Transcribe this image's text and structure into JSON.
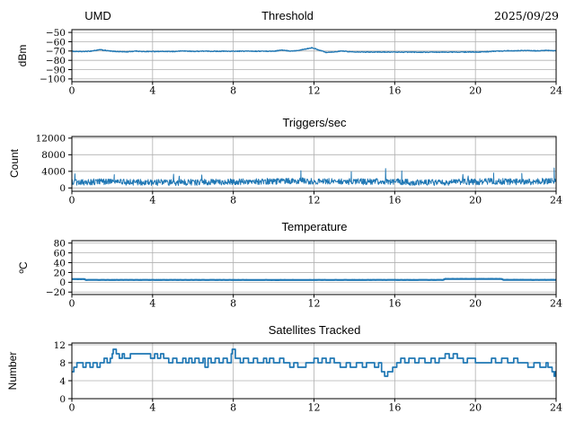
{
  "header": {
    "left_label": "UMD",
    "date": "2025/09/29"
  },
  "chart_data": [
    {
      "type": "line",
      "title": "Threshold",
      "ylabel": "dBm",
      "xlabel": "",
      "xlim": [
        0,
        24
      ],
      "ylim": [
        -103,
        -47
      ],
      "grid": true,
      "legend": "none",
      "color": "#1f77b4",
      "xticks": {
        "values": [
          0,
          4,
          8,
          12,
          16,
          20,
          24
        ],
        "labels": [
          "0",
          "4",
          "8",
          "12",
          "16",
          "20",
          "24"
        ]
      },
      "yticks": {
        "values": [
          -50,
          -60,
          -70,
          -80,
          -90,
          -100
        ],
        "labels": [
          "−50",
          "−60",
          "−70",
          "−80",
          "−90",
          "−100"
        ]
      },
      "series": [
        {
          "name": "threshold_dbm",
          "interpolation": "linear",
          "sample_step": 0.02,
          "noise": 0.4,
          "keypoints": [
            [
              0,
              -70.3
            ],
            [
              0.5,
              -70.6
            ],
            [
              0.9,
              -70.2
            ],
            [
              1.4,
              -68.6
            ],
            [
              2.0,
              -70.3
            ],
            [
              2.7,
              -70.9
            ],
            [
              3.2,
              -70.0
            ],
            [
              3.5,
              -70.6
            ],
            [
              4.2,
              -70.4
            ],
            [
              5.0,
              -70.6
            ],
            [
              5.5,
              -69.9
            ],
            [
              6.0,
              -70.4
            ],
            [
              6.5,
              -70.1
            ],
            [
              7.0,
              -70.3
            ],
            [
              7.5,
              -70.2
            ],
            [
              8.0,
              -70.3
            ],
            [
              8.7,
              -70.1
            ],
            [
              9.3,
              -70.2
            ],
            [
              10.0,
              -70.2
            ],
            [
              10.4,
              -69.0
            ],
            [
              10.8,
              -70.1
            ],
            [
              11.1,
              -69.6
            ],
            [
              11.4,
              -68.5
            ],
            [
              11.9,
              -66.5
            ],
            [
              12.1,
              -67.8
            ],
            [
              12.6,
              -71.4
            ],
            [
              13.0,
              -70.9
            ],
            [
              13.4,
              -70.0
            ],
            [
              13.8,
              -70.8
            ],
            [
              14.5,
              -71.0
            ],
            [
              15.5,
              -71.1
            ],
            [
              16.5,
              -71.2
            ],
            [
              17.5,
              -71.3
            ],
            [
              18.5,
              -71.2
            ],
            [
              19.5,
              -71.1
            ],
            [
              20.3,
              -71.0
            ],
            [
              21.0,
              -70.2
            ],
            [
              21.5,
              -69.8
            ],
            [
              22.0,
              -69.6
            ],
            [
              22.5,
              -69.5
            ],
            [
              23.0,
              -69.8
            ],
            [
              23.5,
              -69.4
            ],
            [
              24,
              -69.8
            ]
          ]
        }
      ]
    },
    {
      "type": "line",
      "title": "Triggers/sec",
      "ylabel": "Count",
      "xlabel": "",
      "xlim": [
        0,
        24
      ],
      "ylim": [
        -800,
        12400
      ],
      "grid": true,
      "legend": "none",
      "color": "#1f77b4",
      "xticks": {
        "values": [
          0,
          4,
          8,
          12,
          16,
          20,
          24
        ],
        "labels": [
          "0",
          "4",
          "8",
          "12",
          "16",
          "20",
          "24"
        ]
      },
      "yticks": {
        "values": [
          0,
          4000,
          8000,
          12000
        ],
        "labels": [
          "0",
          "4000",
          "8000",
          "12000"
        ]
      },
      "series": [
        {
          "name": "triggers_per_sec",
          "interpolation": "linear",
          "sample_step": 0.02,
          "noise": 750,
          "clamp_min": 300,
          "burst_chance": 0.013,
          "burst_max": 1500,
          "spikes": [
            [
              0.15,
              3400
            ],
            [
              2.1,
              3200
            ],
            [
              11.35,
              4150
            ],
            [
              13.85,
              3900
            ],
            [
              15.55,
              4650
            ],
            [
              16.35,
              4100
            ],
            [
              20.9,
              3600
            ],
            [
              22.3,
              3500
            ],
            [
              23.9,
              4800
            ]
          ],
          "keypoints": [
            [
              0,
              1400
            ],
            [
              2,
              1500
            ],
            [
              4,
              1300
            ],
            [
              6,
              1350
            ],
            [
              8,
              1500
            ],
            [
              10,
              1600
            ],
            [
              11.5,
              1750
            ],
            [
              12,
              1500
            ],
            [
              13,
              1600
            ],
            [
              14,
              1500
            ],
            [
              15,
              1550
            ],
            [
              16,
              1500
            ],
            [
              17,
              1300
            ],
            [
              18,
              1300
            ],
            [
              19,
              1400
            ],
            [
              20,
              1500
            ],
            [
              21,
              1600
            ],
            [
              22,
              1500
            ],
            [
              23,
              1500
            ],
            [
              24,
              1800
            ]
          ]
        }
      ]
    },
    {
      "type": "line",
      "title": "Temperature",
      "ylabel": "ºC",
      "xlabel": "",
      "xlim": [
        0,
        24
      ],
      "ylim": [
        -25,
        85
      ],
      "grid": true,
      "legend": "none",
      "color": "#1f77b4",
      "xticks": {
        "values": [
          0,
          4,
          8,
          12,
          16,
          20,
          24
        ],
        "labels": [
          "0",
          "4",
          "8",
          "12",
          "16",
          "20",
          "24"
        ]
      },
      "yticks": {
        "values": [
          80,
          60,
          40,
          20,
          0,
          -20
        ],
        "labels": [
          "80",
          "60",
          "40",
          "20",
          "0",
          "−20"
        ]
      },
      "series": [
        {
          "name": "temperature_c",
          "interpolation": "linear",
          "sample_step": 0.05,
          "noise": 0.12,
          "keypoints": [
            [
              0,
              6.5
            ],
            [
              0.6,
              6.5
            ],
            [
              0.7,
              4.8
            ],
            [
              5,
              4.8
            ],
            [
              10,
              4.7
            ],
            [
              15,
              4.8
            ],
            [
              18.4,
              4.8
            ],
            [
              18.5,
              6.8
            ],
            [
              21.3,
              6.8
            ],
            [
              21.4,
              4.9
            ],
            [
              24,
              4.9
            ]
          ]
        }
      ]
    },
    {
      "type": "line",
      "title": "Satellites Tracked",
      "ylabel": "Number",
      "xlabel": "",
      "xlim": [
        0,
        24
      ],
      "ylim": [
        0,
        12.4
      ],
      "grid": true,
      "legend": "none",
      "color": "#1f77b4",
      "xticks": {
        "values": [
          0,
          4,
          8,
          12,
          16,
          20,
          24
        ],
        "labels": [
          "0",
          "4",
          "8",
          "12",
          "16",
          "20",
          "24"
        ]
      },
      "yticks": {
        "values": [
          12,
          8,
          4,
          0
        ],
        "labels": [
          "12",
          "8",
          "4",
          "0"
        ]
      },
      "series": [
        {
          "name": "satellites_tracked",
          "interpolation": "step",
          "keypoints": [
            [
              0,
              6
            ],
            [
              0.1,
              7
            ],
            [
              0.25,
              8
            ],
            [
              0.55,
              7
            ],
            [
              0.7,
              8
            ],
            [
              0.9,
              7
            ],
            [
              1.05,
              8
            ],
            [
              1.25,
              7
            ],
            [
              1.4,
              8
            ],
            [
              1.6,
              9
            ],
            [
              1.75,
              8
            ],
            [
              1.9,
              9
            ],
            [
              2.0,
              10
            ],
            [
              2.05,
              11
            ],
            [
              2.2,
              10
            ],
            [
              2.35,
              9
            ],
            [
              2.5,
              10
            ],
            [
              2.6,
              9
            ],
            [
              2.9,
              10
            ],
            [
              3.9,
              9
            ],
            [
              4.1,
              10
            ],
            [
              4.25,
              9
            ],
            [
              4.4,
              10
            ],
            [
              4.55,
              9
            ],
            [
              4.8,
              8
            ],
            [
              5.0,
              9
            ],
            [
              5.2,
              8
            ],
            [
              5.5,
              9
            ],
            [
              5.65,
              8
            ],
            [
              5.8,
              9
            ],
            [
              5.95,
              8
            ],
            [
              6.1,
              9
            ],
            [
              6.3,
              8
            ],
            [
              6.5,
              9
            ],
            [
              6.6,
              7
            ],
            [
              6.75,
              9
            ],
            [
              6.9,
              8
            ],
            [
              7.1,
              9
            ],
            [
              7.3,
              8
            ],
            [
              7.5,
              9
            ],
            [
              7.7,
              8
            ],
            [
              7.9,
              10
            ],
            [
              7.95,
              11
            ],
            [
              8.1,
              9
            ],
            [
              8.35,
              8
            ],
            [
              8.5,
              9
            ],
            [
              8.75,
              8
            ],
            [
              9.0,
              9
            ],
            [
              9.2,
              8
            ],
            [
              9.5,
              9
            ],
            [
              9.65,
              8
            ],
            [
              9.8,
              9
            ],
            [
              10.0,
              8
            ],
            [
              10.3,
              9
            ],
            [
              10.5,
              8
            ],
            [
              10.8,
              7
            ],
            [
              11.0,
              8
            ],
            [
              11.2,
              7
            ],
            [
              11.6,
              8
            ],
            [
              12.0,
              9
            ],
            [
              12.2,
              8
            ],
            [
              12.4,
              9
            ],
            [
              12.6,
              8
            ],
            [
              12.8,
              9
            ],
            [
              13.0,
              8
            ],
            [
              13.3,
              7
            ],
            [
              13.6,
              8
            ],
            [
              13.8,
              7
            ],
            [
              14.1,
              8
            ],
            [
              14.4,
              7
            ],
            [
              14.6,
              8
            ],
            [
              15.0,
              7
            ],
            [
              15.2,
              8
            ],
            [
              15.35,
              6
            ],
            [
              15.5,
              5
            ],
            [
              15.65,
              6
            ],
            [
              15.9,
              7
            ],
            [
              16.1,
              8
            ],
            [
              16.3,
              9
            ],
            [
              16.5,
              8
            ],
            [
              16.7,
              9
            ],
            [
              17.0,
              8
            ],
            [
              17.2,
              9
            ],
            [
              17.5,
              8
            ],
            [
              17.8,
              9
            ],
            [
              18.0,
              8
            ],
            [
              18.2,
              9
            ],
            [
              18.5,
              10
            ],
            [
              18.7,
              9
            ],
            [
              18.9,
              10
            ],
            [
              19.1,
              9
            ],
            [
              19.4,
              8
            ],
            [
              19.6,
              9
            ],
            [
              20.0,
              8
            ],
            [
              20.8,
              9
            ],
            [
              21.0,
              8
            ],
            [
              21.3,
              9
            ],
            [
              21.6,
              8
            ],
            [
              21.9,
              9
            ],
            [
              22.1,
              8
            ],
            [
              22.6,
              7
            ],
            [
              22.9,
              8
            ],
            [
              23.2,
              7
            ],
            [
              23.5,
              8
            ],
            [
              23.6,
              7
            ],
            [
              23.8,
              6
            ],
            [
              23.9,
              5
            ],
            [
              23.95,
              6
            ],
            [
              24,
              6
            ]
          ]
        }
      ]
    }
  ]
}
